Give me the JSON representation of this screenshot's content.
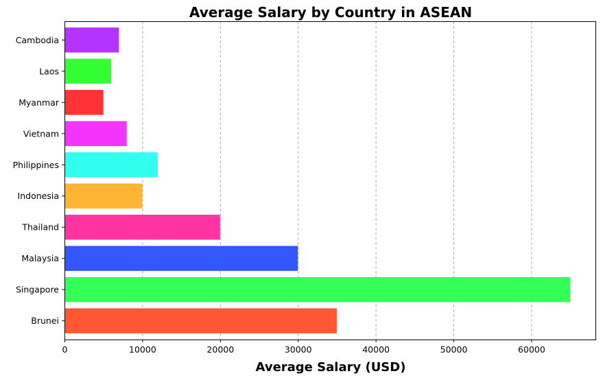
{
  "chart_data": {
    "type": "bar",
    "orientation": "horizontal",
    "title": "Average Salary by Country in ASEAN",
    "xlabel": "Average Salary (USD)",
    "ylabel": "",
    "categories": [
      "Brunei",
      "Singapore",
      "Malaysia",
      "Thailand",
      "Indonesia",
      "Philippines",
      "Vietnam",
      "Myanmar",
      "Laos",
      "Cambodia"
    ],
    "values": [
      35000,
      65000,
      30000,
      20000,
      10000,
      12000,
      8000,
      5000,
      6000,
      7000
    ],
    "colors": [
      "#ff5733",
      "#33ff57",
      "#3357ff",
      "#ff33a1",
      "#ffb533",
      "#33fff0",
      "#f533ff",
      "#ff3333",
      "#33ff33",
      "#b533ff"
    ],
    "xticks": [
      0,
      10000,
      20000,
      30000,
      40000,
      50000,
      60000
    ],
    "xtick_labels": [
      "0",
      "10000",
      "20000",
      "30000",
      "40000",
      "50000",
      "60000"
    ],
    "xlim": [
      0,
      68250
    ],
    "grid": {
      "x": true,
      "y": false,
      "style": "dashed"
    },
    "legend": "none"
  }
}
